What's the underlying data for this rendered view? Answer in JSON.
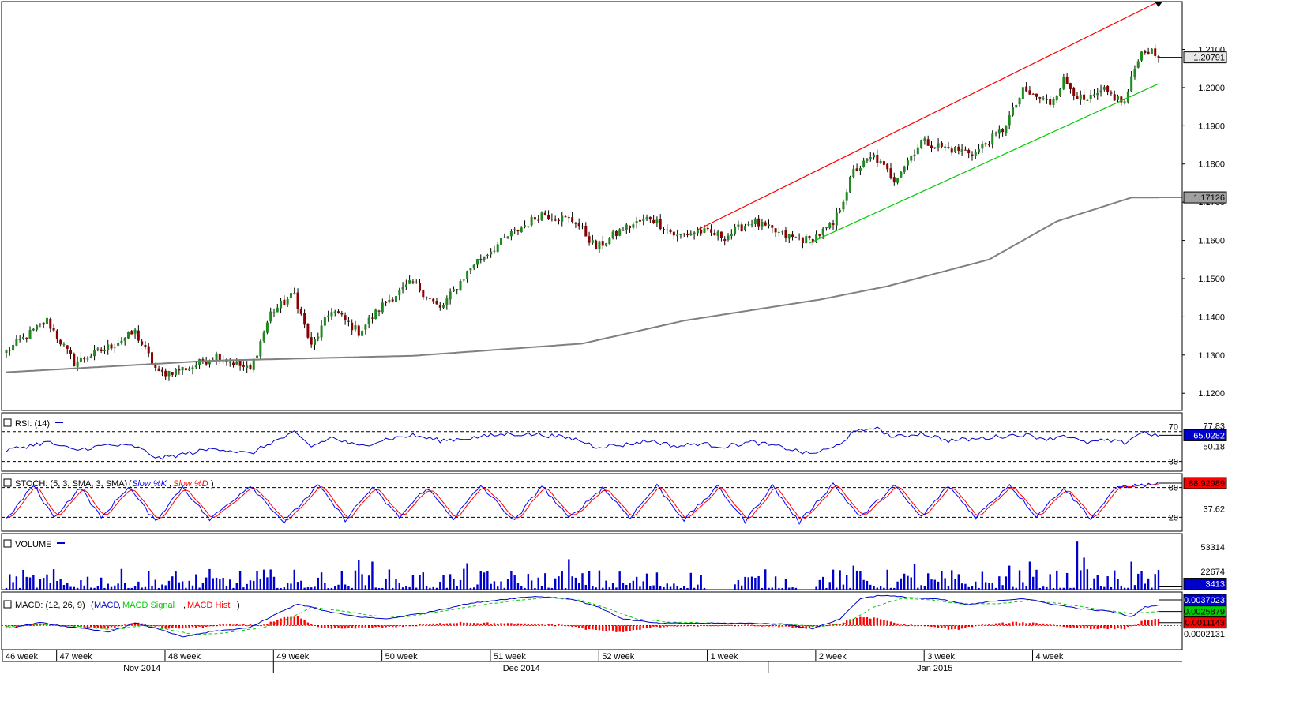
{
  "colors": {
    "bull": "#1f8a1f",
    "bear": "#8b0000",
    "wick": "#000000",
    "channel_upper": "#ff0000",
    "channel_lower": "#00cc00",
    "ma": "#808080",
    "rsi": "#0000cc",
    "stoch_k": "#0000ff",
    "stoch_d": "#ff0000",
    "volume": "#0000cc",
    "macd": "#0000cc",
    "macd_signal": "#00cc00",
    "macd_hist": "#ff0000",
    "grid": "#000000",
    "panel_border": "#000000"
  },
  "chart_data": {
    "type": "candlestick",
    "price": {
      "ylim": [
        1.1155,
        1.2225
      ],
      "tick_labels": [
        "1.2100",
        "1.2000",
        "1.1900",
        "1.1800",
        "1.1700",
        "1.1600",
        "1.1500",
        "1.1400",
        "1.1300",
        "1.1200"
      ],
      "current_price_label": "1.20791",
      "current_price": 1.20791,
      "ma_label": "1.17126",
      "ma_value": 1.17126,
      "ma_anchor": [
        [
          0,
          1.1255
        ],
        [
          60,
          1.1285
        ],
        [
          120,
          1.1298
        ],
        [
          170,
          1.133
        ],
        [
          200,
          1.139
        ],
        [
          240,
          1.1445
        ],
        [
          260,
          1.148
        ],
        [
          290,
          1.155
        ],
        [
          310,
          1.165
        ],
        [
          332,
          1.1712
        ]
      ],
      "channel_upper": {
        "from": [
          204,
          1.1628
        ],
        "to": [
          340,
          1.2225
        ]
      },
      "channel_lower": {
        "from": [
          237,
          1.1593
        ],
        "to": [
          340,
          1.201
        ]
      },
      "anchors": [
        [
          0,
          1.131
        ],
        [
          12,
          1.139
        ],
        [
          20,
          1.128
        ],
        [
          30,
          1.132
        ],
        [
          38,
          1.136
        ],
        [
          45,
          1.125
        ],
        [
          55,
          1.127
        ],
        [
          62,
          1.13
        ],
        [
          72,
          1.126
        ],
        [
          78,
          1.141
        ],
        [
          85,
          1.146
        ],
        [
          90,
          1.132
        ],
        [
          96,
          1.142
        ],
        [
          104,
          1.136
        ],
        [
          112,
          1.144
        ],
        [
          120,
          1.149
        ],
        [
          128,
          1.142
        ],
        [
          138,
          1.154
        ],
        [
          148,
          1.161
        ],
        [
          158,
          1.167
        ],
        [
          168,
          1.165
        ],
        [
          174,
          1.158
        ],
        [
          182,
          1.163
        ],
        [
          190,
          1.166
        ],
        [
          198,
          1.161
        ],
        [
          204,
          1.1625
        ],
        [
          212,
          1.161
        ],
        [
          220,
          1.165
        ],
        [
          230,
          1.161
        ],
        [
          237,
          1.16
        ],
        [
          244,
          1.164
        ],
        [
          250,
          1.178
        ],
        [
          256,
          1.182
        ],
        [
          262,
          1.176
        ],
        [
          270,
          1.186
        ],
        [
          278,
          1.184
        ],
        [
          286,
          1.183
        ],
        [
          294,
          1.189
        ],
        [
          300,
          1.199
        ],
        [
          308,
          1.196
        ],
        [
          312,
          1.202
        ],
        [
          318,
          1.196
        ],
        [
          324,
          1.199
        ],
        [
          330,
          1.196
        ],
        [
          334,
          1.208
        ],
        [
          336,
          1.21
        ],
        [
          340,
          1.208
        ]
      ]
    },
    "rsi": {
      "label": "RSI: (14)",
      "ylim": [
        17,
        95
      ],
      "level_labels": [
        "70",
        "30"
      ],
      "levels": [
        70,
        30
      ],
      "labels": [
        "77.83",
        "65.0282",
        "50.18"
      ],
      "current": 65.0282,
      "current_label": "65.0282",
      "anchors": [
        [
          0,
          45
        ],
        [
          12,
          56
        ],
        [
          20,
          45
        ],
        [
          30,
          52
        ],
        [
          38,
          50
        ],
        [
          45,
          34
        ],
        [
          55,
          42
        ],
        [
          62,
          48
        ],
        [
          72,
          40
        ],
        [
          78,
          55
        ],
        [
          85,
          68
        ],
        [
          90,
          50
        ],
        [
          96,
          62
        ],
        [
          104,
          50
        ],
        [
          112,
          60
        ],
        [
          120,
          65
        ],
        [
          128,
          58
        ],
        [
          138,
          62
        ],
        [
          148,
          67
        ],
        [
          158,
          66
        ],
        [
          168,
          60
        ],
        [
          174,
          50
        ],
        [
          182,
          52
        ],
        [
          190,
          58
        ],
        [
          198,
          50
        ],
        [
          204,
          54
        ],
        [
          212,
          50
        ],
        [
          220,
          56
        ],
        [
          230,
          48
        ],
        [
          237,
          40
        ],
        [
          244,
          48
        ],
        [
          250,
          68
        ],
        [
          256,
          76
        ],
        [
          262,
          62
        ],
        [
          270,
          68
        ],
        [
          278,
          58
        ],
        [
          286,
          60
        ],
        [
          294,
          64
        ],
        [
          300,
          66
        ],
        [
          308,
          60
        ],
        [
          312,
          66
        ],
        [
          318,
          55
        ],
        [
          324,
          58
        ],
        [
          330,
          55
        ],
        [
          334,
          67
        ],
        [
          336,
          69
        ],
        [
          340,
          64
        ]
      ]
    },
    "stoch": {
      "label": "STOCH: (5, 3, SMA, 3, SMA)",
      "legend": [
        "Slow %K",
        "Slow %D"
      ],
      "ylim": [
        -8,
        108
      ],
      "levels": [
        80,
        20
      ],
      "level_labels": [
        "80",
        "20"
      ],
      "labels": [
        "88.92989",
        "37.62"
      ],
      "current": 88.92989,
      "current_label": "88.92989",
      "anchors": [
        [
          0,
          15
        ],
        [
          8,
          85
        ],
        [
          14,
          20
        ],
        [
          22,
          80
        ],
        [
          28,
          18
        ],
        [
          36,
          82
        ],
        [
          44,
          12
        ],
        [
          52,
          82
        ],
        [
          60,
          15
        ],
        [
          72,
          85
        ],
        [
          82,
          10
        ],
        [
          92,
          85
        ],
        [
          100,
          15
        ],
        [
          108,
          80
        ],
        [
          116,
          20
        ],
        [
          124,
          80
        ],
        [
          132,
          18
        ],
        [
          140,
          84
        ],
        [
          150,
          12
        ],
        [
          158,
          84
        ],
        [
          166,
          18
        ],
        [
          176,
          80
        ],
        [
          184,
          20
        ],
        [
          192,
          84
        ],
        [
          200,
          15
        ],
        [
          210,
          82
        ],
        [
          218,
          12
        ],
        [
          226,
          84
        ],
        [
          234,
          10
        ],
        [
          244,
          88
        ],
        [
          252,
          20
        ],
        [
          262,
          84
        ],
        [
          270,
          20
        ],
        [
          278,
          84
        ],
        [
          286,
          20
        ],
        [
          296,
          86
        ],
        [
          304,
          22
        ],
        [
          312,
          80
        ],
        [
          320,
          18
        ],
        [
          328,
          82
        ],
        [
          336,
          85
        ],
        [
          340,
          88
        ]
      ]
    },
    "volume": {
      "label": "VOLUME",
      "ylim": [
        0,
        70000
      ],
      "labels": [
        "53314",
        "22674",
        "3413"
      ],
      "current": 3413,
      "current_label": "3413",
      "spikes": [
        [
          316,
          60000
        ],
        [
          318,
          40000
        ],
        [
          302,
          35000
        ],
        [
          136,
          33000
        ],
        [
          166,
          38000
        ],
        [
          108,
          35000
        ],
        [
          104,
          37000
        ],
        [
          250,
          30000
        ],
        [
          332,
          35000
        ],
        [
          296,
          30000
        ],
        [
          268,
          32000
        ],
        [
          244,
          25000
        ],
        [
          76,
          25000
        ]
      ]
    },
    "macd": {
      "label": "MACD: (12, 26, 9)",
      "legend": [
        "MACD",
        "MACD Signal",
        "MACD Hist"
      ],
      "ylim": [
        -0.0045,
        0.0062
      ],
      "labels": [
        "0.0037023",
        "0.0025879",
        "0.0011143",
        "0.0002131"
      ],
      "current_macd": 0.0037023,
      "current_signal": 0.0025879,
      "current_hist": 0.0011143,
      "macd_anchors": [
        [
          0,
          -0.0006
        ],
        [
          10,
          0.0005
        ],
        [
          20,
          -0.0004
        ],
        [
          30,
          -0.0012
        ],
        [
          38,
          0.0004
        ],
        [
          46,
          -0.0008
        ],
        [
          52,
          -0.0022
        ],
        [
          60,
          -0.0012
        ],
        [
          72,
          -0.0004
        ],
        [
          80,
          0.0022
        ],
        [
          86,
          0.004
        ],
        [
          96,
          0.0024
        ],
        [
          104,
          0.0016
        ],
        [
          112,
          0.0012
        ],
        [
          124,
          0.0024
        ],
        [
          136,
          0.004
        ],
        [
          146,
          0.0048
        ],
        [
          156,
          0.0054
        ],
        [
          166,
          0.005
        ],
        [
          174,
          0.0036
        ],
        [
          182,
          0.0012
        ],
        [
          192,
          0.0004
        ],
        [
          204,
          0.0004
        ],
        [
          220,
          0.0004
        ],
        [
          230,
          0.0002
        ],
        [
          238,
          -0.0006
        ],
        [
          246,
          0.0012
        ],
        [
          252,
          0.005
        ],
        [
          258,
          0.0056
        ],
        [
          266,
          0.0052
        ],
        [
          276,
          0.0048
        ],
        [
          284,
          0.0038
        ],
        [
          292,
          0.0046
        ],
        [
          300,
          0.005
        ],
        [
          310,
          0.0038
        ],
        [
          318,
          0.003
        ],
        [
          326,
          0.0026
        ],
        [
          332,
          0.0016
        ],
        [
          336,
          0.0034
        ],
        [
          340,
          0.0037
        ]
      ],
      "signal_anchors": [
        [
          0,
          -0.0002
        ],
        [
          10,
          0.0002
        ],
        [
          22,
          -0.0002
        ],
        [
          32,
          -0.0008
        ],
        [
          40,
          0.0
        ],
        [
          50,
          -0.001
        ],
        [
          56,
          -0.0018
        ],
        [
          64,
          -0.0014
        ],
        [
          76,
          -0.0004
        ],
        [
          84,
          0.0014
        ],
        [
          90,
          0.0034
        ],
        [
          100,
          0.0026
        ],
        [
          108,
          0.0018
        ],
        [
          118,
          0.0016
        ],
        [
          130,
          0.0028
        ],
        [
          140,
          0.0038
        ],
        [
          150,
          0.0046
        ],
        [
          160,
          0.0052
        ],
        [
          170,
          0.0046
        ],
        [
          178,
          0.003
        ],
        [
          186,
          0.0012
        ],
        [
          196,
          0.0006
        ],
        [
          210,
          0.0004
        ],
        [
          226,
          0.0003
        ],
        [
          240,
          -0.0002
        ],
        [
          248,
          0.0004
        ],
        [
          256,
          0.0034
        ],
        [
          264,
          0.005
        ],
        [
          272,
          0.0048
        ],
        [
          282,
          0.004
        ],
        [
          292,
          0.004
        ],
        [
          302,
          0.0046
        ],
        [
          312,
          0.004
        ],
        [
          322,
          0.003
        ],
        [
          332,
          0.0022
        ],
        [
          340,
          0.0026
        ]
      ],
      "hist_anchors": [
        [
          0,
          -0.0003
        ],
        [
          10,
          0.0003
        ],
        [
          20,
          -0.0002
        ],
        [
          30,
          -0.0006
        ],
        [
          38,
          0.0005
        ],
        [
          48,
          -0.0006
        ],
        [
          56,
          -0.0004
        ],
        [
          66,
          0.0002
        ],
        [
          76,
          0.0001
        ],
        [
          82,
          0.0014
        ],
        [
          86,
          0.0016
        ],
        [
          92,
          -0.0004
        ],
        [
          100,
          -0.0006
        ],
        [
          108,
          -0.0004
        ],
        [
          116,
          -0.0002
        ],
        [
          124,
          0.0002
        ],
        [
          134,
          0.0006
        ],
        [
          144,
          0.0004
        ],
        [
          156,
          0.0002
        ],
        [
          164,
          0.0001
        ],
        [
          172,
          -0.0008
        ],
        [
          182,
          -0.0012
        ],
        [
          190,
          -0.0004
        ],
        [
          200,
          -0.0001
        ],
        [
          220,
          0.0
        ],
        [
          236,
          -0.0005
        ],
        [
          246,
          0.0004
        ],
        [
          252,
          0.0016
        ],
        [
          258,
          0.0012
        ],
        [
          264,
          0.0002
        ],
        [
          272,
          -0.0002
        ],
        [
          280,
          -0.0008
        ],
        [
          288,
          0.0001
        ],
        [
          298,
          0.0006
        ],
        [
          306,
          0.0004
        ],
        [
          314,
          -0.0004
        ],
        [
          322,
          -0.0006
        ],
        [
          330,
          -0.0006
        ],
        [
          334,
          0.0004
        ],
        [
          336,
          0.001
        ],
        [
          340,
          0.0011
        ]
      ]
    },
    "bars": 341,
    "x_axis": {
      "week_labels": [
        "46 week",
        "47 week",
        "48 week",
        "49 week",
        "50 week",
        "51 week",
        "52 week",
        "1 week",
        "2 week",
        "3 week",
        "4 week"
      ],
      "week_starts": [
        0,
        16,
        48,
        80,
        112,
        144,
        176,
        208,
        240,
        272,
        304
      ],
      "month_labels": [
        "Nov 2014",
        "Dec 2014",
        "Jan 2015"
      ],
      "month_positions": [
        40,
        152,
        274
      ],
      "month_boundaries": [
        80,
        226
      ]
    }
  }
}
